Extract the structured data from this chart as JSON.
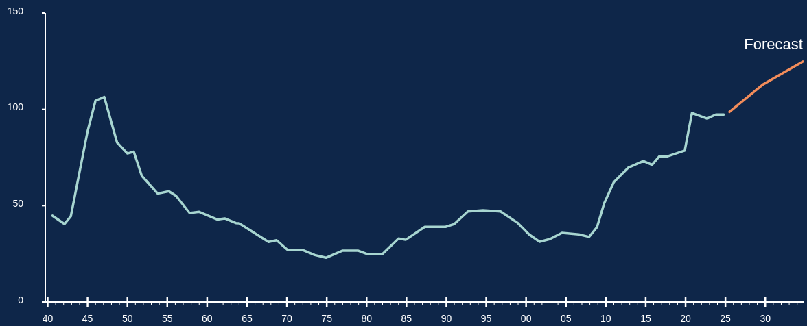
{
  "chart_data": {
    "type": "line",
    "xlim": [
      1939.7,
      2034.8
    ],
    "ylim": [
      0,
      150
    ],
    "yticks": [
      0,
      50,
      100,
      150
    ],
    "xticks": [
      {
        "value": 1940,
        "label": "40"
      },
      {
        "value": 1941,
        "label": null
      },
      {
        "value": 1942,
        "label": null
      },
      {
        "value": 1943,
        "label": null
      },
      {
        "value": 1944,
        "label": null
      },
      {
        "value": 1945,
        "label": "45"
      },
      {
        "value": 1946,
        "label": null
      },
      {
        "value": 1947,
        "label": null
      },
      {
        "value": 1948,
        "label": null
      },
      {
        "value": 1949,
        "label": null
      },
      {
        "value": 1950,
        "label": "50"
      },
      {
        "value": 1951,
        "label": null
      },
      {
        "value": 1952,
        "label": null
      },
      {
        "value": 1953,
        "label": null
      },
      {
        "value": 1954,
        "label": null
      },
      {
        "value": 1955,
        "label": "55"
      },
      {
        "value": 1956,
        "label": null
      },
      {
        "value": 1957,
        "label": null
      },
      {
        "value": 1958,
        "label": null
      },
      {
        "value": 1959,
        "label": null
      },
      {
        "value": 1960,
        "label": "60"
      },
      {
        "value": 1961,
        "label": null
      },
      {
        "value": 1962,
        "label": null
      },
      {
        "value": 1963,
        "label": null
      },
      {
        "value": 1964,
        "label": null
      },
      {
        "value": 1965,
        "label": "65"
      },
      {
        "value": 1966,
        "label": null
      },
      {
        "value": 1967,
        "label": null
      },
      {
        "value": 1968,
        "label": null
      },
      {
        "value": 1969,
        "label": null
      },
      {
        "value": 1970,
        "label": "70"
      },
      {
        "value": 1971,
        "label": null
      },
      {
        "value": 1972,
        "label": null
      },
      {
        "value": 1973,
        "label": null
      },
      {
        "value": 1974,
        "label": null
      },
      {
        "value": 1975,
        "label": "75"
      },
      {
        "value": 1976,
        "label": null
      },
      {
        "value": 1977,
        "label": null
      },
      {
        "value": 1978,
        "label": null
      },
      {
        "value": 1979,
        "label": null
      },
      {
        "value": 1980,
        "label": "80"
      },
      {
        "value": 1981,
        "label": null
      },
      {
        "value": 1982,
        "label": null
      },
      {
        "value": 1983,
        "label": null
      },
      {
        "value": 1984,
        "label": null
      },
      {
        "value": 1985,
        "label": "85"
      },
      {
        "value": 1986,
        "label": null
      },
      {
        "value": 1987,
        "label": null
      },
      {
        "value": 1988,
        "label": null
      },
      {
        "value": 1989,
        "label": null
      },
      {
        "value": 1990,
        "label": "90"
      },
      {
        "value": 1991,
        "label": null
      },
      {
        "value": 1992,
        "label": null
      },
      {
        "value": 1993,
        "label": null
      },
      {
        "value": 1994,
        "label": null
      },
      {
        "value": 1995,
        "label": "95"
      },
      {
        "value": 1996,
        "label": null
      },
      {
        "value": 1997,
        "label": null
      },
      {
        "value": 1998,
        "label": null
      },
      {
        "value": 1999,
        "label": null
      },
      {
        "value": 2000,
        "label": "00"
      },
      {
        "value": 2001,
        "label": null
      },
      {
        "value": 2002,
        "label": null
      },
      {
        "value": 2003,
        "label": null
      },
      {
        "value": 2004,
        "label": null
      },
      {
        "value": 2005,
        "label": "05"
      },
      {
        "value": 2006,
        "label": null
      },
      {
        "value": 2007,
        "label": null
      },
      {
        "value": 2008,
        "label": null
      },
      {
        "value": 2009,
        "label": null
      },
      {
        "value": 2010,
        "label": "10"
      },
      {
        "value": 2011,
        "label": null
      },
      {
        "value": 2012,
        "label": null
      },
      {
        "value": 2013,
        "label": null
      },
      {
        "value": 2014,
        "label": null
      },
      {
        "value": 2015,
        "label": "15"
      },
      {
        "value": 2016,
        "label": null
      },
      {
        "value": 2017,
        "label": null
      },
      {
        "value": 2018,
        "label": null
      },
      {
        "value": 2019,
        "label": null
      },
      {
        "value": 2020,
        "label": "20"
      },
      {
        "value": 2021,
        "label": null
      },
      {
        "value": 2022,
        "label": null
      },
      {
        "value": 2023,
        "label": null
      },
      {
        "value": 2024,
        "label": null
      },
      {
        "value": 2025,
        "label": "25"
      },
      {
        "value": 2026,
        "label": null
      },
      {
        "value": 2027,
        "label": null
      },
      {
        "value": 2028,
        "label": null
      },
      {
        "value": 2029,
        "label": null
      },
      {
        "value": 2030,
        "label": "30"
      },
      {
        "value": 2031,
        "label": null
      },
      {
        "value": 2032,
        "label": null
      },
      {
        "value": 2033,
        "label": null
      },
      {
        "value": 2034,
        "label": null
      }
    ],
    "grid": false,
    "legend": false,
    "marker": "none",
    "line_style": "solid",
    "series": [
      {
        "color": "#a7d5d0",
        "x": [
          1940.6,
          1942.1,
          1942.9,
          1945,
          1946,
          1947.1,
          1948.7,
          1950,
          1950.8,
          1951.8,
          1953.8,
          1955.2,
          1956.1,
          1957.8,
          1959,
          1961.3,
          1962.2,
          1963.6,
          1964,
          1967.7,
          1968.7,
          1970.1,
          1972,
          1973.5,
          1974.9,
          1977,
          1978.9,
          1980,
          1982,
          1984,
          1984.9,
          1987.3,
          1989.9,
          1991,
          1992.7,
          1994.6,
          1996.8,
          1998.9,
          2000.4,
          2001.7,
          2003,
          2004.5,
          2006.6,
          2007.9,
          2008.9,
          2009.8,
          2011,
          2012.8,
          2014.7,
          2015.8,
          2016.7,
          2017.7,
          2019.9,
          2020.8,
          2022.7,
          2023.8,
          2024.8
        ],
        "values": [
          44.8,
          40.5,
          44.5,
          88.5,
          104.5,
          106.4,
          82.8,
          77.1,
          78,
          65.5,
          56.3,
          57.5,
          55.1,
          46.2,
          46.8,
          42.8,
          43.4,
          41,
          40.9,
          31.2,
          32.1,
          27,
          27,
          24.4,
          23,
          26.7,
          26.7,
          25,
          25,
          33,
          32.3,
          39,
          39,
          40.5,
          47,
          47.6,
          47,
          41.2,
          35,
          31.3,
          32.7,
          35.9,
          35.1,
          33.8,
          38.9,
          51.3,
          62.2,
          69.7,
          73.2,
          71.2,
          75.6,
          75.6,
          78.6,
          98.1,
          95.2,
          97.3,
          97.3
        ]
      },
      {
        "name": "Forecast",
        "color": "#f28c5a",
        "x": [
          2025.5,
          2029.7,
          2034.7
        ],
        "values": [
          98.7,
          112.9,
          124.8
        ]
      }
    ]
  }
}
